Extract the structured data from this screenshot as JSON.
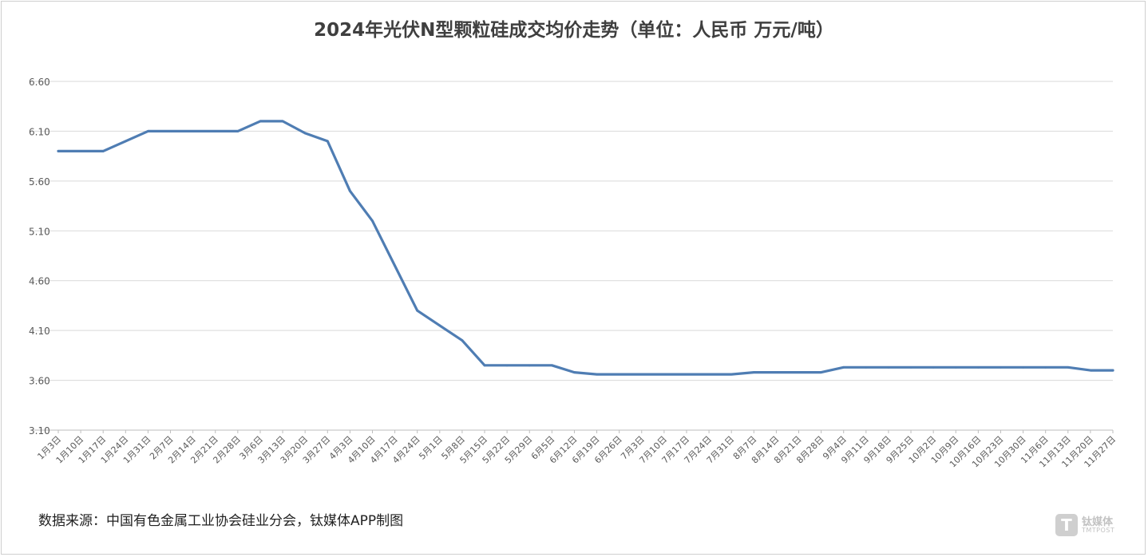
{
  "chart_data": {
    "type": "line",
    "title": "2024年光伏N型颗粒硅成交均价走势（单位：人民币 万元/吨）",
    "xlabel": "",
    "ylabel": "",
    "ylim": [
      3.1,
      6.6
    ],
    "yticks": [
      "6.60",
      "6.10",
      "5.60",
      "5.10",
      "4.60",
      "4.10",
      "3.60",
      "3.10"
    ],
    "grid": true,
    "line_color": "#4f7db3",
    "categories": [
      "1月3日",
      "1月10日",
      "1月17日",
      "1月24日",
      "1月31日",
      "2月7日",
      "2月14日",
      "2月21日",
      "2月28日",
      "3月6日",
      "3月13日",
      "3月20日",
      "3月27日",
      "4月3日",
      "4月10日",
      "4月17日",
      "4月24日",
      "5月1日",
      "5月8日",
      "5月15日",
      "5月22日",
      "5月29日",
      "6月5日",
      "6月12日",
      "6月19日",
      "6月26日",
      "7月3日",
      "7月10日",
      "7月17日",
      "7月24日",
      "7月31日",
      "8月7日",
      "8月14日",
      "8月21日",
      "8月28日",
      "9月4日",
      "9月11日",
      "9月18日",
      "9月25日",
      "10月2日",
      "10月9日",
      "10月16日",
      "10月23日",
      "10月30日",
      "11月6日",
      "11月13日",
      "11月20日",
      "11月27日"
    ],
    "series": [
      {
        "values": [
          5.9,
          5.9,
          5.9,
          6.0,
          6.1,
          6.1,
          6.1,
          6.1,
          6.1,
          6.2,
          6.2,
          6.08,
          6.0,
          5.5,
          5.2,
          4.75,
          4.3,
          4.15,
          4.0,
          3.75,
          3.75,
          3.75,
          3.75,
          3.68,
          3.66,
          3.66,
          3.66,
          3.66,
          3.66,
          3.66,
          3.66,
          3.68,
          3.68,
          3.68,
          3.68,
          3.73,
          3.73,
          3.73,
          3.73,
          3.73,
          3.73,
          3.73,
          3.73,
          3.73,
          3.73,
          3.73,
          3.7,
          3.7
        ]
      }
    ]
  },
  "footer": {
    "source": "数据来源：中国有色金属工业协会硅业分会，钛媒体APP制图"
  },
  "logo": {
    "mark": "T",
    "name_cn": "钛媒体",
    "name_en": "TMTPOST"
  }
}
